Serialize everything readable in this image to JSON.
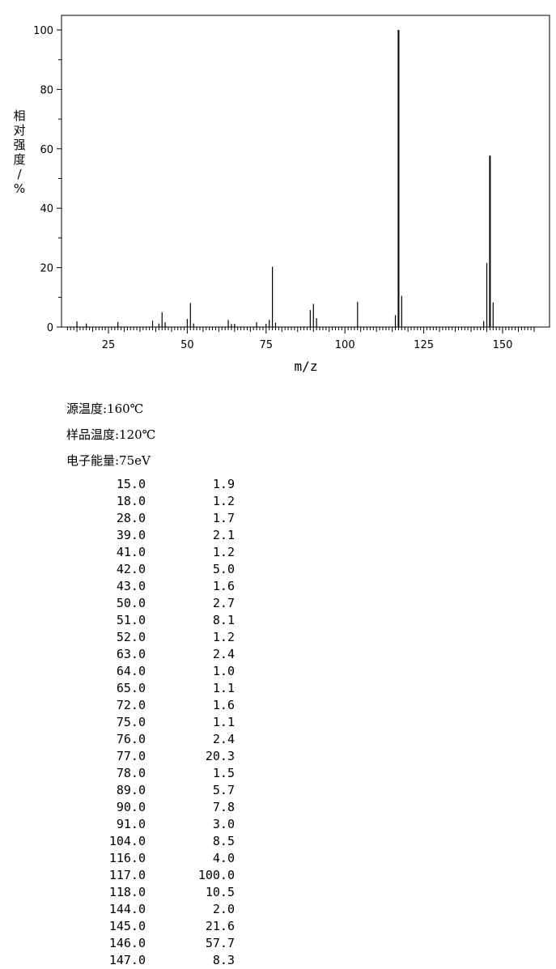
{
  "chart_data": {
    "type": "bar",
    "xlabel": "m/z",
    "ylabel": "相对强度/%",
    "xlim": [
      10,
      162
    ],
    "ylim": [
      0,
      105
    ],
    "xticks": [
      25,
      50,
      75,
      100,
      125,
      150
    ],
    "yticks": [
      0,
      20,
      40,
      60,
      80,
      100
    ],
    "grid": false,
    "peaks": [
      {
        "mz": 15.0,
        "intensity": 1.9
      },
      {
        "mz": 18.0,
        "intensity": 1.2
      },
      {
        "mz": 28.0,
        "intensity": 1.7
      },
      {
        "mz": 39.0,
        "intensity": 2.1
      },
      {
        "mz": 41.0,
        "intensity": 1.2
      },
      {
        "mz": 42.0,
        "intensity": 5.0
      },
      {
        "mz": 43.0,
        "intensity": 1.6
      },
      {
        "mz": 50.0,
        "intensity": 2.7
      },
      {
        "mz": 51.0,
        "intensity": 8.1
      },
      {
        "mz": 52.0,
        "intensity": 1.2
      },
      {
        "mz": 63.0,
        "intensity": 2.4
      },
      {
        "mz": 64.0,
        "intensity": 1.0
      },
      {
        "mz": 65.0,
        "intensity": 1.1
      },
      {
        "mz": 72.0,
        "intensity": 1.6
      },
      {
        "mz": 75.0,
        "intensity": 1.1
      },
      {
        "mz": 76.0,
        "intensity": 2.4
      },
      {
        "mz": 77.0,
        "intensity": 20.3
      },
      {
        "mz": 78.0,
        "intensity": 1.5
      },
      {
        "mz": 89.0,
        "intensity": 5.7
      },
      {
        "mz": 90.0,
        "intensity": 7.8
      },
      {
        "mz": 91.0,
        "intensity": 3.0
      },
      {
        "mz": 104.0,
        "intensity": 8.5
      },
      {
        "mz": 116.0,
        "intensity": 4.0
      },
      {
        "mz": 117.0,
        "intensity": 100.0
      },
      {
        "mz": 118.0,
        "intensity": 10.5
      },
      {
        "mz": 144.0,
        "intensity": 2.0
      },
      {
        "mz": 145.0,
        "intensity": 21.6
      },
      {
        "mz": 146.0,
        "intensity": 57.7
      },
      {
        "mz": 147.0,
        "intensity": 8.3
      }
    ]
  },
  "conditions": {
    "source_temp": "源温度:160℃",
    "sample_temp": "样品温度:120℃",
    "electron_energy": "电子能量:75eV"
  },
  "table": [
    {
      "mz": "15.0",
      "ab": "1.9"
    },
    {
      "mz": "18.0",
      "ab": "1.2"
    },
    {
      "mz": "28.0",
      "ab": "1.7"
    },
    {
      "mz": "39.0",
      "ab": "2.1"
    },
    {
      "mz": "41.0",
      "ab": "1.2"
    },
    {
      "mz": "42.0",
      "ab": "5.0"
    },
    {
      "mz": "43.0",
      "ab": "1.6"
    },
    {
      "mz": "50.0",
      "ab": "2.7"
    },
    {
      "mz": "51.0",
      "ab": "8.1"
    },
    {
      "mz": "52.0",
      "ab": "1.2"
    },
    {
      "mz": "63.0",
      "ab": "2.4"
    },
    {
      "mz": "64.0",
      "ab": "1.0"
    },
    {
      "mz": "65.0",
      "ab": "1.1"
    },
    {
      "mz": "72.0",
      "ab": "1.6"
    },
    {
      "mz": "75.0",
      "ab": "1.1"
    },
    {
      "mz": "76.0",
      "ab": "2.4"
    },
    {
      "mz": "77.0",
      "ab": "20.3"
    },
    {
      "mz": "78.0",
      "ab": "1.5"
    },
    {
      "mz": "89.0",
      "ab": "5.7"
    },
    {
      "mz": "90.0",
      "ab": "7.8"
    },
    {
      "mz": "91.0",
      "ab": "3.0"
    },
    {
      "mz": "104.0",
      "ab": "8.5"
    },
    {
      "mz": "116.0",
      "ab": "4.0"
    },
    {
      "mz": "117.0",
      "ab": "100.0"
    },
    {
      "mz": "118.0",
      "ab": "10.5"
    },
    {
      "mz": "144.0",
      "ab": "2.0"
    },
    {
      "mz": "145.0",
      "ab": "21.6"
    },
    {
      "mz": "146.0",
      "ab": "57.7"
    },
    {
      "mz": "147.0",
      "ab": "8.3"
    }
  ]
}
